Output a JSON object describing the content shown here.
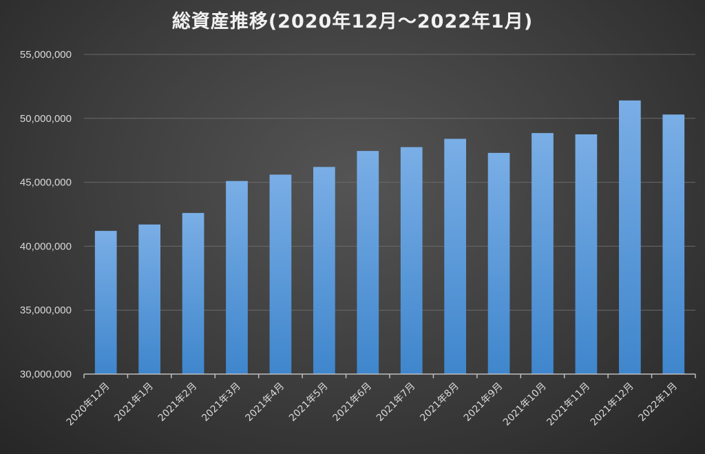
{
  "chart_data": {
    "type": "bar",
    "title": "総資産推移(2020年12月～2022年1月)",
    "xlabel": "",
    "ylabel": "",
    "categories": [
      "2020年12月",
      "2021年1月",
      "2021年2月",
      "2021年3月",
      "2021年4月",
      "2021年5月",
      "2021年6月",
      "2021年7月",
      "2021年8月",
      "2021年9月",
      "2021年10月",
      "2021年11月",
      "2021年12月",
      "2022年1月"
    ],
    "values": [
      41200000,
      41700000,
      42600000,
      45100000,
      45600000,
      46200000,
      47450000,
      47750000,
      48400000,
      47300000,
      48850000,
      48750000,
      51400000,
      50300000
    ],
    "ylim": [
      30000000,
      55000000
    ],
    "yticks": [
      30000000,
      35000000,
      40000000,
      45000000,
      50000000,
      55000000
    ],
    "ytick_labels": [
      "30,000,000",
      "35,000,000",
      "40,000,000",
      "45,000,000",
      "50,000,000",
      "55,000,000"
    ],
    "grid": true,
    "legend": "none",
    "bar_color_top": "#7aaee6",
    "bar_color_bottom": "#3f86cc"
  }
}
